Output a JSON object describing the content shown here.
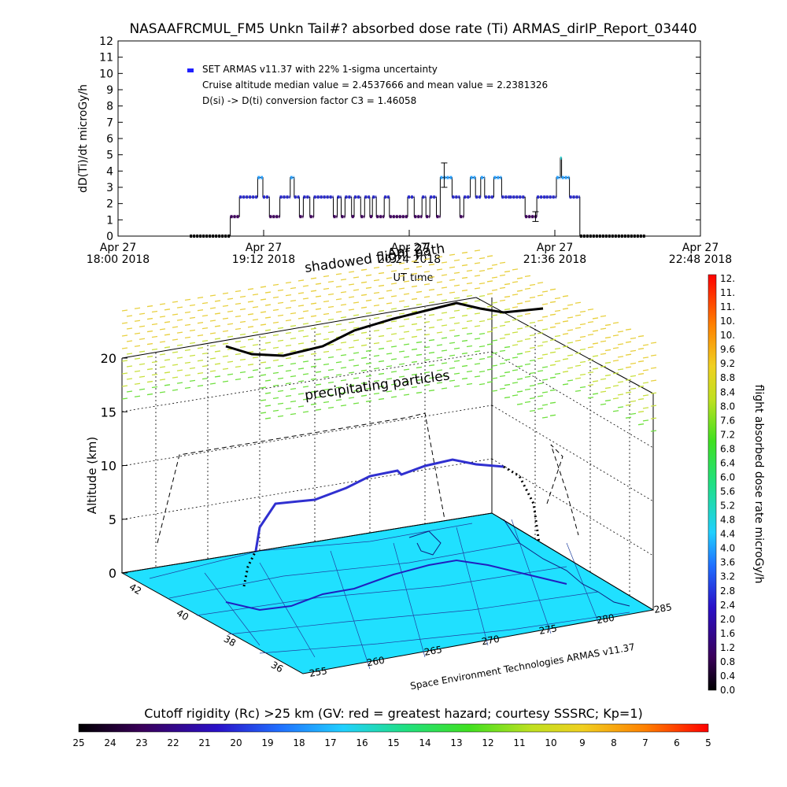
{
  "chart_data": [
    {
      "type": "scatter",
      "title": "NASAAFRCMUL_FM5 Unkn Tail#? absorbed dose rate (Ti) ARMAS_dirIP_Report_03440",
      "xlabel": "UT time",
      "ylabel": "dD(Ti)/dt microGy/h",
      "ylim": [
        0,
        12
      ],
      "yticks": [
        "0",
        "1",
        "2",
        "3",
        "4",
        "5",
        "6",
        "7",
        "8",
        "9",
        "10",
        "11",
        "12"
      ],
      "xtick_labels": [
        {
          "date": "Apr 27",
          "time": "18:00 2018"
        },
        {
          "date": "Apr 27",
          "time": "19:12 2018"
        },
        {
          "date": "Apr 27",
          "time": "20:24 2018"
        },
        {
          "date": "Apr 27",
          "time": "21:36 2018"
        },
        {
          "date": "Apr 27",
          "time": "22:48 2018"
        }
      ],
      "xlim_minutes_from_1800": [
        0,
        288
      ],
      "legend": [
        "SET ARMAS v11.37 with 22% 1-sigma uncertainty",
        "Cruise altitude median value = 2.4537666 and mean value = 2.2381326",
        "D(si) -> D(ti) conversion factor C3 = 1.46058"
      ],
      "segments": [
        {
          "t0": 55,
          "t1": 86,
          "v": 0.0
        },
        {
          "t0": 86,
          "t1": 93,
          "v": 1.2
        },
        {
          "t0": 93,
          "t1": 107,
          "v": 2.4
        },
        {
          "t0": 107,
          "t1": 111,
          "v": 3.6
        },
        {
          "t0": 111,
          "t1": 116,
          "v": 2.4
        },
        {
          "t0": 116,
          "t1": 124,
          "v": 1.2
        },
        {
          "t0": 124,
          "t1": 132,
          "v": 2.4
        },
        {
          "t0": 132,
          "t1": 135,
          "v": 3.6
        },
        {
          "t0": 135,
          "t1": 139,
          "v": 2.4
        },
        {
          "t0": 139,
          "t1": 142,
          "v": 1.2
        },
        {
          "t0": 142,
          "t1": 147,
          "v": 2.4
        },
        {
          "t0": 147,
          "t1": 150,
          "v": 1.2
        },
        {
          "t0": 150,
          "t1": 165,
          "v": 2.4
        },
        {
          "t0": 165,
          "t1": 168,
          "v": 1.2
        },
        {
          "t0": 168,
          "t1": 171,
          "v": 2.4
        },
        {
          "t0": 171,
          "t1": 174,
          "v": 1.2
        },
        {
          "t0": 174,
          "t1": 179,
          "v": 2.4
        },
        {
          "t0": 179,
          "t1": 181,
          "v": 1.2
        },
        {
          "t0": 181,
          "t1": 186,
          "v": 2.4
        },
        {
          "t0": 186,
          "t1": 189,
          "v": 1.2
        },
        {
          "t0": 189,
          "t1": 193,
          "v": 2.4
        },
        {
          "t0": 193,
          "t1": 195,
          "v": 1.2
        },
        {
          "t0": 195,
          "t1": 198,
          "v": 2.4
        },
        {
          "t0": 198,
          "t1": 204,
          "v": 1.2
        },
        {
          "t0": 204,
          "t1": 208,
          "v": 2.4
        },
        {
          "t0": 208,
          "t1": 222,
          "v": 1.2
        },
        {
          "t0": 222,
          "t1": 227,
          "v": 2.4
        },
        {
          "t0": 227,
          "t1": 233,
          "v": 1.2
        },
        {
          "t0": 233,
          "t1": 236,
          "v": 2.4
        },
        {
          "t0": 236,
          "t1": 239,
          "v": 1.2
        },
        {
          "t0": 239,
          "t1": 244,
          "v": 2.4
        },
        {
          "t0": 244,
          "t1": 247,
          "v": 1.2
        },
        {
          "t0": 247,
          "t1": 256,
          "v": 3.6
        },
        {
          "t0": 256,
          "t1": 262,
          "v": 2.4
        },
        {
          "t0": 262,
          "t1": 265,
          "v": 1.2
        },
        {
          "t0": 265,
          "t1": 270,
          "v": 2.4
        },
        {
          "t0": 270,
          "t1": 274,
          "v": 3.6
        },
        {
          "t0": 274,
          "t1": 278,
          "v": 2.4
        },
        {
          "t0": 278,
          "t1": 281,
          "v": 3.6
        },
        {
          "t0": 281,
          "t1": 288,
          "v": 2.4
        },
        {
          "t0": 288,
          "t1": 294,
          "v": 3.6
        },
        {
          "t0": 294,
          "t1": 300,
          "v": 2.4
        },
        {
          "t0": 300,
          "t1": 312,
          "v": 2.4
        },
        {
          "t0": 312,
          "t1": 321,
          "v": 1.2
        },
        {
          "t0": 321,
          "t1": 328,
          "v": 2.4
        },
        {
          "t0": 328,
          "t1": 336,
          "v": 2.4
        },
        {
          "t0": 336,
          "t1": 339,
          "v": 3.6
        },
        {
          "t0": 339,
          "t1": 340,
          "v": 4.8
        },
        {
          "t0": 340,
          "t1": 346,
          "v": 3.6
        },
        {
          "t0": 346,
          "t1": 354,
          "v": 2.4
        },
        {
          "t0": 354,
          "t1": 404,
          "v": 0.0
        }
      ],
      "error_bars": [
        {
          "t": 250,
          "low": 3.0,
          "high": 4.5
        },
        {
          "t": 320,
          "low": 0.9,
          "high": 1.5
        }
      ]
    },
    {
      "type": "scatter",
      "xlabel": "",
      "ylabel": "Altitude (km)",
      "zlim": [
        0,
        20
      ],
      "z_ticks": [
        "0",
        "5",
        "10",
        "15",
        "20"
      ],
      "lat_ticks": [
        "42",
        "40",
        "38",
        "36"
      ],
      "lon_ticks": [
        "255",
        "260",
        "265",
        "270",
        "275",
        "280",
        "285"
      ],
      "annotations": [
        "shadowed flight path",
        "Apr 27",
        "precipitating particles"
      ],
      "credit": "Space Environment Technologies ARMAS v11.37",
      "ground_color": "#20E0FF"
    },
    {
      "type": "heatmap",
      "ylabel": "flight absorbed dose rate microGy/h",
      "colorbar_ticks": [
        "12.",
        "11.",
        "11.",
        "10.",
        "10.",
        "9.6",
        "9.2",
        "8.8",
        "8.4",
        "8.0",
        "7.6",
        "7.2",
        "6.8",
        "6.4",
        "6.0",
        "5.6",
        "5.2",
        "4.8",
        "4.4",
        "4.0",
        "3.6",
        "3.2",
        "2.8",
        "2.4",
        "2.0",
        "1.6",
        "1.2",
        "0.8",
        "0.4",
        "0.0"
      ]
    },
    {
      "type": "heatmap",
      "title": "Cutoff rigidity (Rc) >25 km (GV: red = greatest hazard; courtesy SSSRC; Kp=1)",
      "colorbar_ticks": [
        "25",
        "24",
        "23",
        "22",
        "21",
        "20",
        "19",
        "18",
        "17",
        "16",
        "15",
        "14",
        "13",
        "12",
        "11",
        "10",
        "9",
        "8",
        "7",
        "6",
        "5"
      ]
    }
  ]
}
